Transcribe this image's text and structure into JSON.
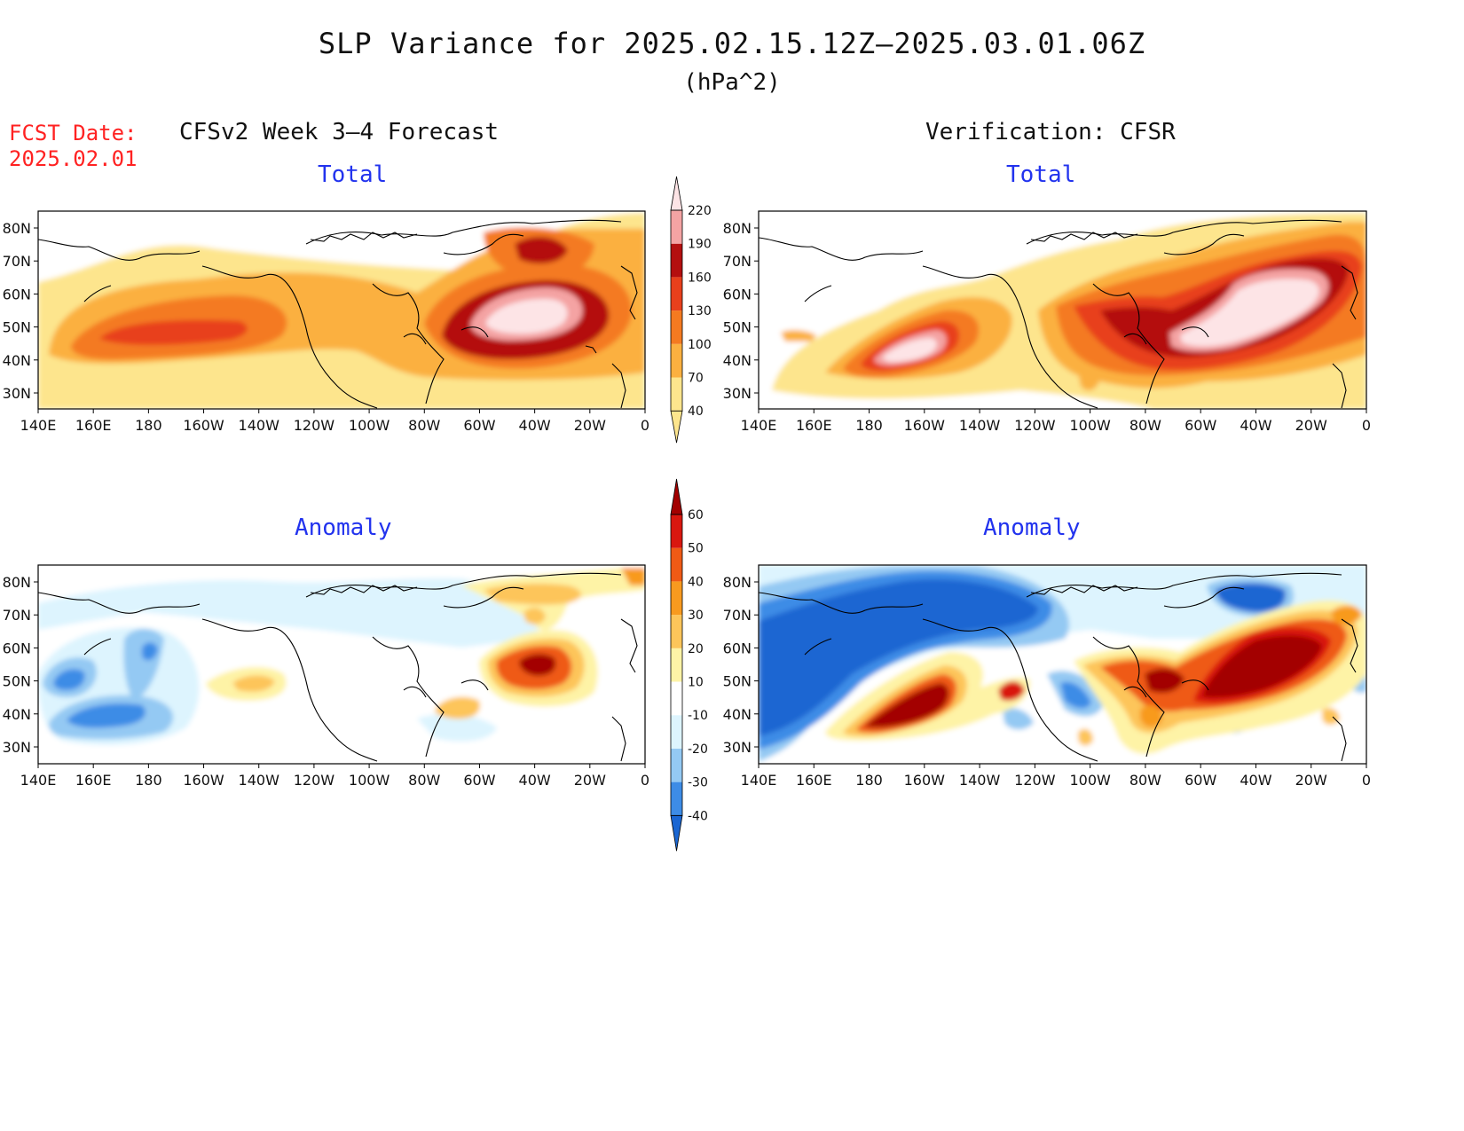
{
  "title": "SLP Variance for 2025.02.15.12Z–2025.03.01.06Z",
  "units": "(hPa^2)",
  "forecast_date_label": "FCST Date:",
  "forecast_date": "2025.02.01",
  "left_heading": "CFSv2 Week 3–4 Forecast",
  "right_heading": "Verification: CFSR",
  "panels": {
    "top_left_title": "Total",
    "top_right_title": "Total",
    "bottom_left_title": "Anomaly",
    "bottom_right_title": "Anomaly"
  },
  "map_axes": {
    "lat_labels": [
      "80N",
      "70N",
      "60N",
      "50N",
      "40N",
      "30N"
    ],
    "lon_labels": [
      "140E",
      "160E",
      "180",
      "160W",
      "140W",
      "120W",
      "100W",
      "80W",
      "60W",
      "40W",
      "20W",
      "0"
    ]
  },
  "total_colorbar": {
    "levels": [
      "40",
      "70",
      "100",
      "130",
      "160",
      "190",
      "220"
    ],
    "colors": [
      "#fde58d",
      "#fbb040",
      "#f47a20",
      "#e8401c",
      "#b40f0f",
      "#f4a3a3",
      "#fde4e6"
    ]
  },
  "anomaly_colorbar": {
    "levels": [
      "-40",
      "-30",
      "-20",
      "-10",
      "10",
      "20",
      "30",
      "40",
      "50",
      "60"
    ],
    "colors": [
      "#1a66d2",
      "#3d8ce6",
      "#94c9f3",
      "#ddf4fe",
      "#ffffff",
      "#fef3a6",
      "#fdc55a",
      "#f89a1f",
      "#ef5a15",
      "#d9170f",
      "#a30000"
    ]
  },
  "colors": {
    "title_text": "#111111",
    "forecast_date": "#ff2222",
    "panel_title": "#2233ee"
  }
}
